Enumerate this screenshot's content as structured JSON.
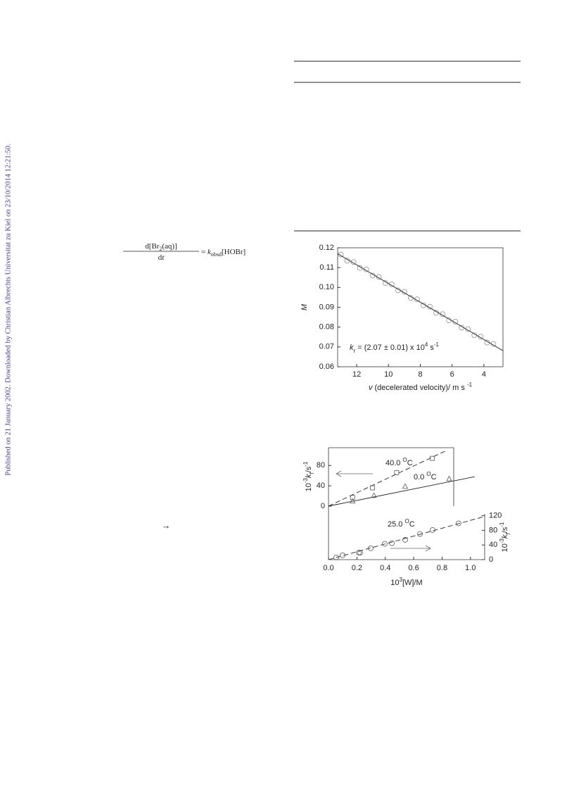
{
  "side_note": "Published on 21 January 2002. Downloaded by Christian Albrechts Universitat zu Kiel on 23/10/2014 12:21:50.",
  "equation": {
    "numerator": [
      "d[Br",
      {
        "sub": "2"
      },
      "(aq)]"
    ],
    "denominator": [
      "d",
      {
        "i": "t"
      }
    ],
    "rhs": [
      "= ",
      {
        "i": "k"
      },
      {
        "sub": "obsd"
      },
      "[HOBr]"
    ]
  },
  "arrow": "→",
  "chart_data": [
    {
      "type": "scatter",
      "xlabel": [
        {
          "i": "v"
        },
        " (decelerated velocity)/ m s ",
        {
          "sup": "-1"
        }
      ],
      "ylabel": [
        {
          "i": "M"
        }
      ],
      "annotation": [
        {
          "i": "k"
        },
        {
          "sub": "r"
        },
        " = (2.07 ± 0.01) x 10",
        {
          "sup": "4"
        },
        " s",
        {
          "sup": "-1"
        }
      ],
      "xlim": [
        13.2,
        2.8
      ],
      "ylim": [
        0.06,
        0.12
      ],
      "xticks": [
        12,
        10,
        8,
        6,
        4
      ],
      "yticks": [
        0.06,
        0.07,
        0.08,
        0.09,
        {
          "value": 0.1,
          "label": "0.10"
        },
        0.11,
        0.12
      ],
      "series": [
        {
          "color": "#9a9a9a",
          "marker": "circle",
          "x": [
            13.0,
            12.6,
            12.2,
            11.8,
            11.4,
            11.0,
            10.6,
            10.2,
            9.8,
            9.4,
            9.0,
            8.6,
            8.2,
            7.8,
            7.4,
            7.0,
            6.6,
            6.2,
            5.8,
            5.4,
            5.0,
            4.6,
            4.2,
            3.8,
            3.4
          ],
          "values": [
            0.1166,
            0.1135,
            0.1128,
            0.1098,
            0.1091,
            0.106,
            0.1053,
            0.1022,
            0.1016,
            0.0985,
            0.0978,
            0.0947,
            0.094,
            0.091,
            0.0903,
            0.0872,
            0.0865,
            0.0834,
            0.0828,
            0.0797,
            0.079,
            0.0759,
            0.0752,
            0.0722,
            0.0715
          ]
        }
      ],
      "fit": {
        "x": [
          13.2,
          2.8
        ],
        "values": [
          0.117,
          0.0681
        ],
        "color": "#333333"
      }
    },
    {
      "type": "scatter",
      "xlabel": [
        "10",
        {
          "sup": "3"
        },
        "[W]/M"
      ],
      "ylabel": [
        "10",
        {
          "sup": "-3"
        },
        {
          "i": "k"
        },
        {
          "sub": "f"
        },
        "/s",
        {
          "sup": "-1"
        }
      ],
      "y2label": [
        "10",
        {
          "sup": "-3"
        },
        {
          "i": "k"
        },
        {
          "sub": "f"
        },
        "/s",
        {
          "sup": "-1"
        }
      ],
      "xlim": [
        0,
        1.1
      ],
      "ylim": [
        0,
        115
      ],
      "y2lim": [
        0,
        125
      ],
      "xticks": [
        {
          "value": 0,
          "label": "0.0"
        },
        0.2,
        0.4,
        0.6,
        0.8,
        {
          "value": 1,
          "label": "1.0"
        }
      ],
      "yticks": [
        0,
        40,
        80
      ],
      "y2ticks": [
        0,
        40,
        80,
        120
      ],
      "series": [
        {
          "label": [
            "40.0 ",
            {
              "sup": "O"
            },
            "C"
          ],
          "marker": "square",
          "color": "#555555",
          "dash": true,
          "x": [
            0.17,
            0.31,
            0.48,
            0.73
          ],
          "values": [
            17,
            36,
            66,
            94
          ],
          "fit": {
            "x": [
              0,
              0.82
            ],
            "values": [
              0,
              108
            ]
          }
        },
        {
          "label": [
            "0.0 ",
            {
              "sup": "O"
            },
            "C"
          ],
          "marker": "triangle",
          "color": "#555555",
          "dash": false,
          "x": [
            0.17,
            0.32,
            0.54,
            0.85
          ],
          "values": [
            10,
            21,
            39,
            54
          ],
          "fit": {
            "x": [
              0,
              1.03
            ],
            "values": [
              0,
              58
            ]
          }
        },
        {
          "label": [
            "25.0 ",
            {
              "sup": "O"
            },
            "C"
          ],
          "marker": "circle",
          "color": "#555555",
          "dash": true,
          "axis": "y2",
          "x": [
            0.054,
            0.099,
            0.213,
            0.223,
            0.297,
            0.396,
            0.446,
            0.54,
            0.644,
            0.733,
            0.916
          ],
          "values": [
            6,
            12,
            19,
            19,
            31,
            43,
            45,
            54,
            70,
            81,
            99
          ],
          "fit": {
            "x": [
              0,
              1.1
            ],
            "values": [
              0,
              118
            ]
          }
        }
      ]
    }
  ]
}
